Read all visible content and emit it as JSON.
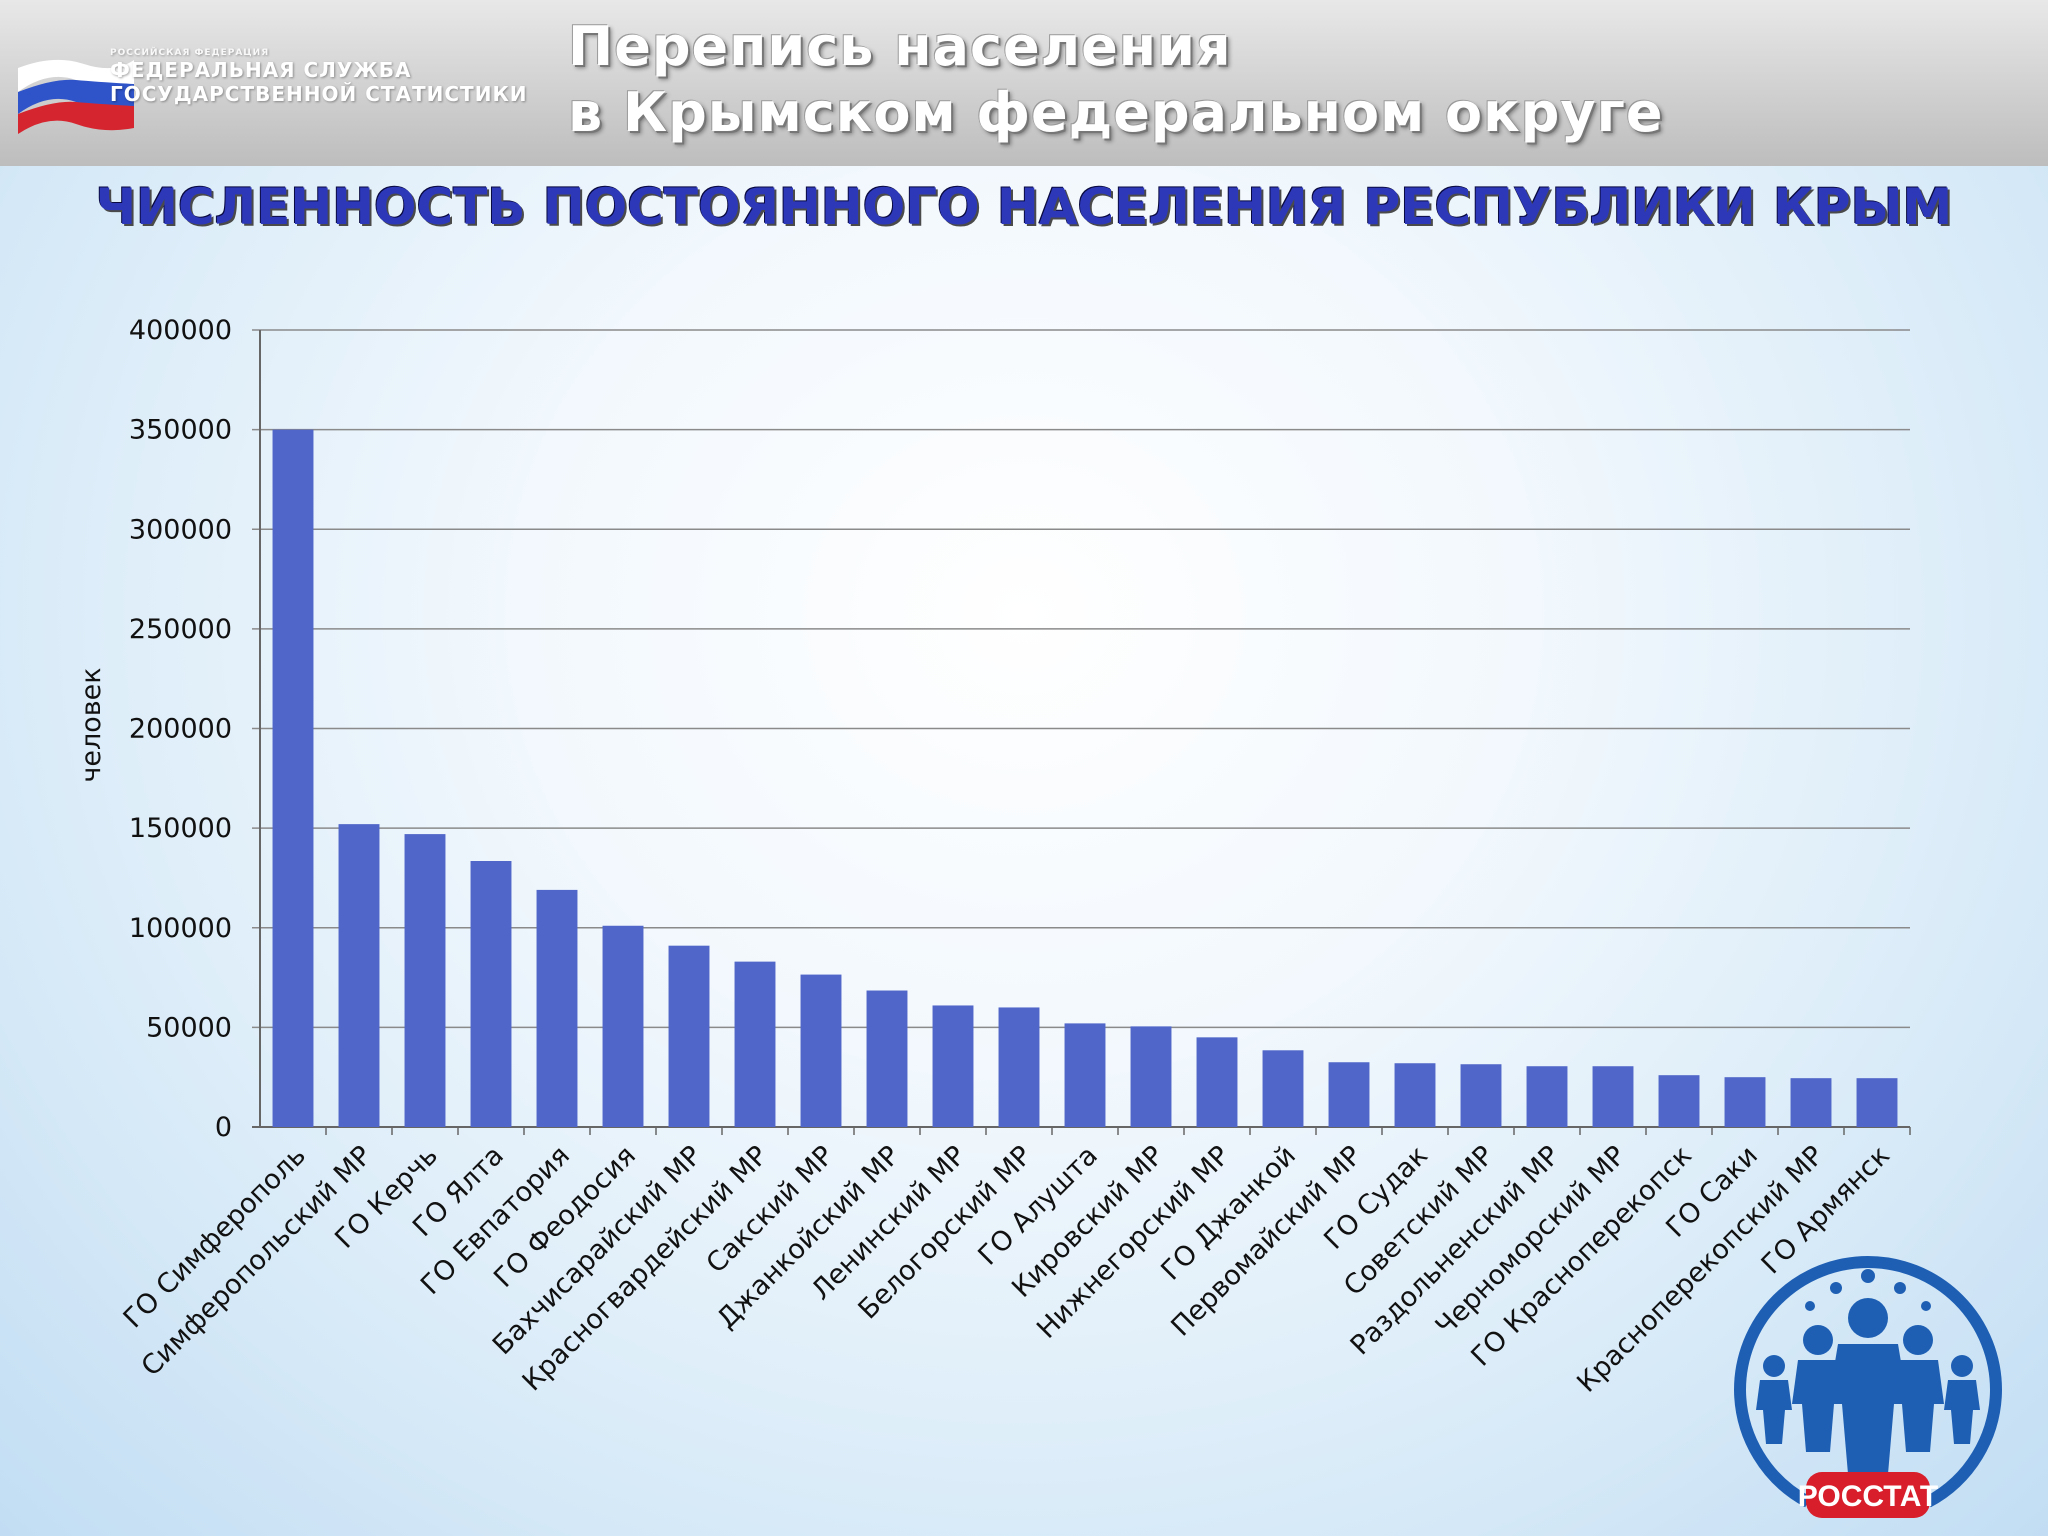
{
  "header": {
    "agency_small": "РОССИЙСКАЯ ФЕДЕРАЦИЯ",
    "agency_line1": "ФЕДЕРАЛЬНАЯ СЛУЖБА",
    "agency_line2": "ГОСУДАРСТВЕННОЙ СТАТИСТИКИ",
    "title_line1": "Перепись населения",
    "title_line2": "в Крымском федеральном округе"
  },
  "slide_title": "ЧИСЛЕННОСТЬ ПОСТОЯННОГО НАСЕЛЕНИЯ РЕСПУБЛИКИ КРЫМ",
  "logo": {
    "text": "РОССТАТ",
    "icon": "people-group-icon"
  },
  "colors": {
    "bar": "#5066c8",
    "title": "#2c38b8",
    "logo": "#1e5fb4",
    "logo_badge": "#d81e2a"
  },
  "chart_data": {
    "type": "bar",
    "title": "",
    "xlabel": "",
    "ylabel": "человек",
    "ylim": [
      0,
      400000
    ],
    "yticks": [
      "0",
      "50000",
      "100000",
      "150000",
      "200000",
      "250000",
      "300000",
      "350000",
      "400000"
    ],
    "grid": true,
    "categories": [
      "ГО Симферополь",
      "Симферопольский МР",
      "ГО Керчь",
      "ГО Ялта",
      "ГО Евпатория",
      "ГО Феодосия",
      "Бахчисарайский МР",
      "Красногвардейский МР",
      "Сакский МР",
      "Джанкойский МР",
      "Ленинский МР",
      "Белогорский МР",
      "ГО Алушта",
      "Кировский МР",
      "Нижнегорский МР",
      "ГО Джанкой",
      "Первомайский МР",
      "ГО Судак",
      "Советский МР",
      "Раздольненский МР",
      "Черноморский МР",
      "ГО Красноперекопск",
      "ГО Саки",
      "Красноперекопский МР",
      "ГО Армянск"
    ],
    "values": [
      350000,
      152000,
      147000,
      133500,
      119000,
      101000,
      91000,
      83000,
      76500,
      68500,
      61000,
      60000,
      52000,
      50500,
      45000,
      38500,
      32500,
      32000,
      31500,
      30500,
      30500,
      26000,
      25000,
      24500,
      24500
    ]
  }
}
